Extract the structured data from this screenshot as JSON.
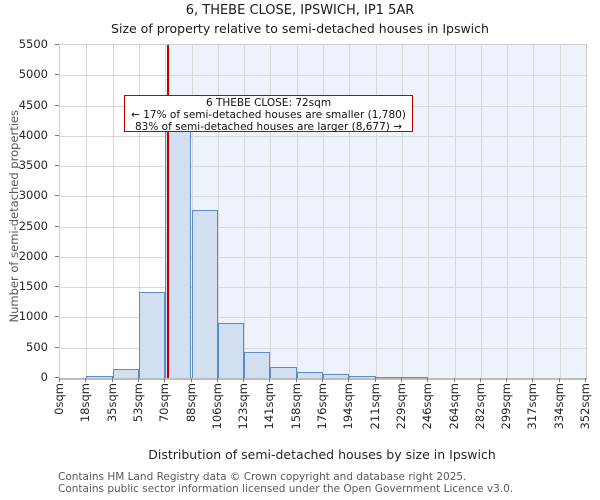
{
  "title": "6, THEBE CLOSE, IPSWICH, IP1 5AR",
  "subtitle": "Size of property relative to semi-detached houses in Ipswich",
  "annotation": {
    "line1": "6 THEBE CLOSE: 72sqm",
    "line2": "← 17% of semi-detached houses are smaller (1,780)",
    "line3": "83% of semi-detached houses are larger (8,677) →"
  },
  "chart_data": {
    "type": "bar",
    "title": "6, THEBE CLOSE, IPSWICH, IP1 5AR",
    "subtitle": "Size of property relative to semi-detached houses in Ipswich",
    "xlabel": "Distribution of semi-detached houses by size in Ipswich",
    "ylabel": "Number of semi-detached properties",
    "categories": [
      "0sqm",
      "18sqm",
      "35sqm",
      "53sqm",
      "70sqm",
      "88sqm",
      "106sqm",
      "123sqm",
      "141sqm",
      "158sqm",
      "176sqm",
      "194sqm",
      "211sqm",
      "229sqm",
      "246sqm",
      "264sqm",
      "282sqm",
      "299sqm",
      "317sqm",
      "334sqm",
      "352sqm"
    ],
    "bin_edges_sqm": [
      0,
      18,
      35,
      53,
      70,
      88,
      106,
      123,
      141,
      158,
      176,
      194,
      211,
      229,
      246,
      264,
      282,
      299,
      317,
      334,
      352
    ],
    "values": [
      0,
      40,
      150,
      1420,
      4450,
      2770,
      910,
      430,
      180,
      100,
      60,
      35,
      20,
      20,
      0,
      0,
      0,
      0,
      0,
      0
    ],
    "ylim": [
      0,
      5500
    ],
    "y_ticks": [
      0,
      500,
      1000,
      1500,
      2000,
      2500,
      3000,
      3500,
      4000,
      4500,
      5000,
      5500
    ],
    "x_max_sqm": 352,
    "marker_value_sqm": 72,
    "grid": true,
    "legend": "none",
    "colors": {
      "bar_fill": "#d2dff0",
      "bar_border": "#5b8cc8",
      "marker_red": "#bf0000",
      "shaded_region": "#eef2fb",
      "gridline": "#d7d7d7"
    }
  },
  "footer": {
    "line1": "Contains HM Land Registry data © Crown copyright and database right 2025.",
    "line2": "Contains public sector information licensed under the Open Government Licence v3.0."
  }
}
